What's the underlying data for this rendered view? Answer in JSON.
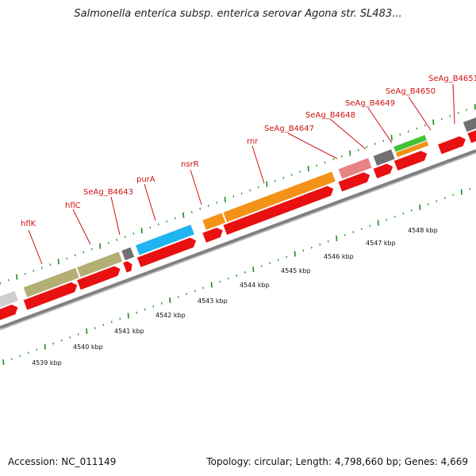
{
  "title": "Salmonella enterica subsp. enterica serovar Agona str. SL483...",
  "accession": "Accession: NC_011149",
  "summary": "Topology: circular; Length: 4,798,660 bp; Genes: 4,669",
  "colors": {
    "cds": "#e81010",
    "backbone": "#909090",
    "tick": "#1e8c1e",
    "label": "#d01010",
    "gene_olive": "#b4ae74",
    "gene_gray": "#707070",
    "gene_blue": "#20b4f0",
    "gene_orange": "#f49218",
    "gene_pink": "#e88484",
    "gene_green": "#44c234",
    "gene_light": "#cfcfcf"
  },
  "kbp_labels": [
    "4539 kbp",
    "4540 kbp",
    "4541 kbp",
    "4542 kbp",
    "4543 kbp",
    "4544 kbp",
    "4545 kbp",
    "4546 kbp",
    "4547 kbp",
    "4548 kbp"
  ],
  "gene_labels": [
    "hflK",
    "hflC",
    "SeAg_B4643",
    "purA",
    "nsrR",
    "rnr",
    "SeAg_B4647",
    "SeAg_B4648",
    "SeAg_B4649",
    "SeAg_B4650",
    "SeAg_B4651"
  ]
}
